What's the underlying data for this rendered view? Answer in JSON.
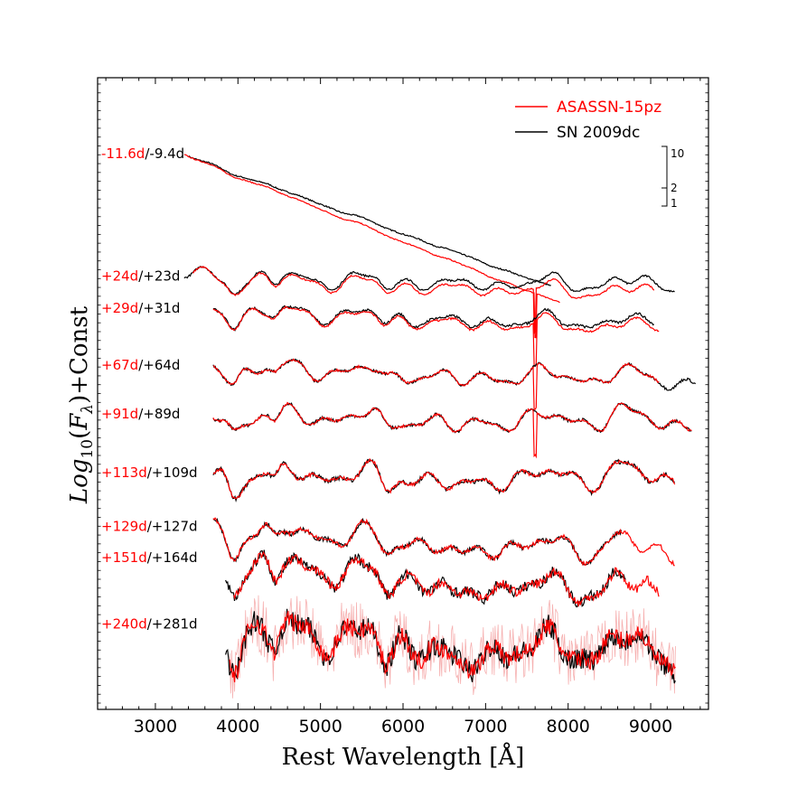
{
  "chart_data": {
    "type": "line",
    "xlabel": "Rest Wavelength [Å]",
    "ylabel": "Log10(Fλ)+Const",
    "ylabel_parts": {
      "base": "Log",
      "sub": "10",
      "open": "(",
      "var": "F",
      "varsub": "λ",
      "tail": ")+Const"
    },
    "xlim": [
      2300,
      9700
    ],
    "ylim": [
      0,
      100
    ],
    "xticks": [
      3000,
      4000,
      5000,
      6000,
      7000,
      8000,
      9000
    ],
    "grid": false,
    "legend_position": "top-right",
    "colors": {
      "asassn": "#ff0000",
      "sn2009dc": "#000000",
      "asassn_raw": "#f6b0b0"
    },
    "legend": [
      {
        "key": "asassn",
        "label": "ASASSN-15pz",
        "color": "#ff0000"
      },
      {
        "key": "sn2009dc",
        "label": "SN 2009dc",
        "color": "#000000"
      }
    ],
    "scale_bar": {
      "labels": [
        "10",
        "2",
        "1"
      ]
    },
    "epochs": [
      {
        "asassn_epoch": "-11.6d",
        "sep": "/",
        "sn2009dc_epoch": "-9.4d",
        "asassn_range": [
          3350,
          7900
        ],
        "sn2009dc_range": [
          3400,
          7800
        ],
        "start": 88.0,
        "end": 58.5,
        "amp": 0.4,
        "noise": 0.1,
        "mismatch": 0.9,
        "ends_diff": 3.0,
        "notch": true
      },
      {
        "asassn_epoch": "+24d",
        "sep": "/",
        "sn2009dc_epoch": "+23d",
        "asassn_range": [
          3450,
          9050
        ],
        "sn2009dc_range": [
          3350,
          9300
        ],
        "start": 68.6,
        "end": 67.0,
        "amp": 2.8,
        "noise": 0.15,
        "mismatch": 1.0,
        "ends_diff": 1.5,
        "notch": true
      },
      {
        "asassn_epoch": "+29d",
        "sep": "/",
        "sn2009dc_epoch": "+31d",
        "asassn_range": [
          3700,
          9100
        ],
        "sn2009dc_range": [
          3700,
          9050
        ],
        "start": 63.5,
        "end": 60.6,
        "amp": 2.8,
        "noise": 0.2,
        "mismatch": 1.2,
        "ends_diff": 0.8,
        "notch": true
      },
      {
        "asassn_epoch": "+67d",
        "sep": "/",
        "sn2009dc_epoch": "+64d",
        "asassn_range": [
          3700,
          9100
        ],
        "sn2009dc_range": [
          3700,
          9550
        ],
        "start": 54.5,
        "end": 52.0,
        "amp": 3.2,
        "noise": 0.22,
        "mismatch": 0.5,
        "ends_diff": 0.0,
        "notch": true
      },
      {
        "asassn_epoch": "+91d",
        "sep": "/",
        "sn2009dc_epoch": "+89d",
        "asassn_range": [
          3700,
          9500
        ],
        "sn2009dc_range": [
          3700,
          9500
        ],
        "start": 46.8,
        "end": 45.5,
        "amp": 3.5,
        "noise": 0.25,
        "mismatch": 1.1,
        "ends_diff": 0.0,
        "notch": true
      },
      {
        "asassn_epoch": "+113d",
        "sep": "/",
        "sn2009dc_epoch": "+109d",
        "asassn_range": [
          3700,
          9300
        ],
        "sn2009dc_range": [
          3700,
          9300
        ],
        "start": 37.5,
        "end": 36.5,
        "amp": 3.8,
        "noise": 0.35,
        "mismatch": 0.6,
        "ends_diff": 0.0,
        "notch": false
      },
      {
        "asassn_epoch": "+129d",
        "sep": "/",
        "sn2009dc_epoch": "+127d",
        "asassn_range": [
          3700,
          9300
        ],
        "sn2009dc_range": [
          3700,
          8650
        ],
        "start": 29.0,
        "end": 24.5,
        "amp": 4.0,
        "noise": 0.4,
        "mismatch": 0.6,
        "ends_diff": 0.0,
        "notch": false
      },
      {
        "asassn_epoch": "+151d",
        "sep": "/",
        "sn2009dc_epoch": "+164d",
        "asassn_range": [
          3950,
          9100
        ],
        "sn2009dc_range": [
          3850,
          8700
        ],
        "start": 24.0,
        "end": 17.5,
        "amp": 4.5,
        "noise": 0.9,
        "mismatch": 0.9,
        "ends_diff": 0.0,
        "notch": false
      },
      {
        "asassn_epoch": "+240d",
        "sep": "/",
        "sn2009dc_epoch": "+281d",
        "asassn_range": [
          3900,
          9300
        ],
        "sn2009dc_range": [
          3850,
          9300
        ],
        "start": 13.5,
        "end": 8.0,
        "amp": 5.5,
        "noise": 1.8,
        "mismatch": 1.2,
        "ends_diff": 0.0,
        "notch": false
      }
    ]
  }
}
